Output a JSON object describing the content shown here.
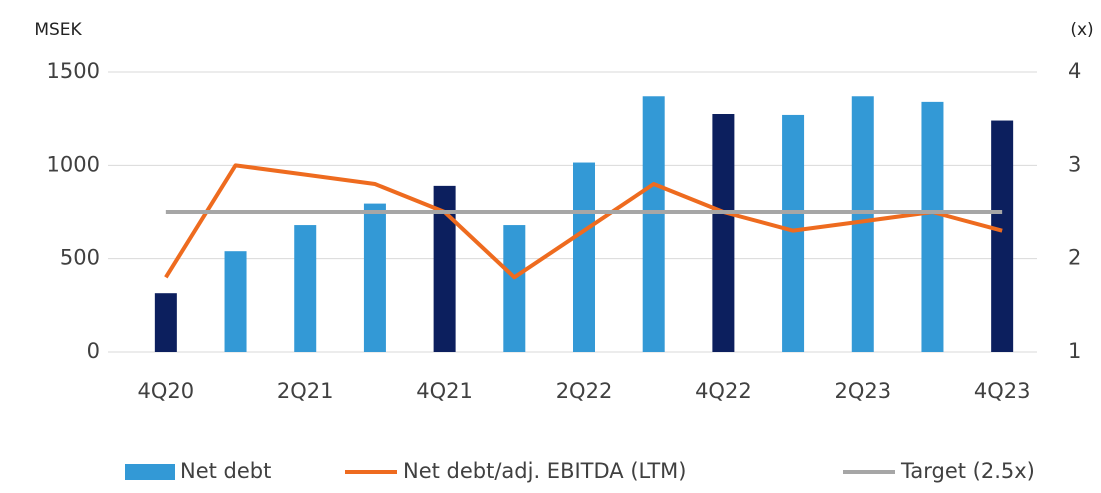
{
  "chart_data": {
    "type": "bar",
    "y_label": "MSEK",
    "y2_label": "(x)",
    "categories": [
      "4Q20",
      null,
      "2Q21",
      null,
      "4Q21",
      null,
      "2Q22",
      null,
      "4Q22",
      null,
      "2Q23",
      null,
      "4Q23"
    ],
    "series": [
      {
        "name": "Net debt",
        "type": "bar",
        "color": "#3399d6",
        "colors": [
          "#0c1f5e",
          "#3399d6",
          "#3399d6",
          "#3399d6",
          "#0c1f5e",
          "#3399d6",
          "#3399d6",
          "#3399d6",
          "#0c1f5e",
          "#3399d6",
          "#3399d6",
          "#3399d6",
          "#0c1f5e"
        ],
        "values": [
          315,
          540,
          680,
          795,
          890,
          680,
          1015,
          1370,
          1275,
          1270,
          1370,
          1340,
          1240
        ]
      },
      {
        "name": "Net debt/adj. EBITDA (LTM)",
        "type": "line",
        "axis": "y2",
        "color": "#ee6b1f",
        "values": [
          1.8,
          3.0,
          2.9,
          2.8,
          2.5,
          1.8,
          2.3,
          2.8,
          2.5,
          2.3,
          2.4,
          2.5,
          2.3
        ]
      },
      {
        "name": "Target (2.5x)",
        "type": "line",
        "axis": "y2",
        "color": "#a6a6a6",
        "values": [
          2.5,
          2.5,
          2.5,
          2.5,
          2.5,
          2.5,
          2.5,
          2.5,
          2.5,
          2.5,
          2.5,
          2.5,
          2.5
        ]
      }
    ],
    "ylim": [
      0,
      1500
    ],
    "yticks": [
      0,
      500,
      1000,
      1500
    ],
    "y2lim": [
      1,
      4
    ],
    "y2ticks": [
      1,
      2,
      3,
      4
    ],
    "grid": true,
    "legend": "bottom"
  }
}
